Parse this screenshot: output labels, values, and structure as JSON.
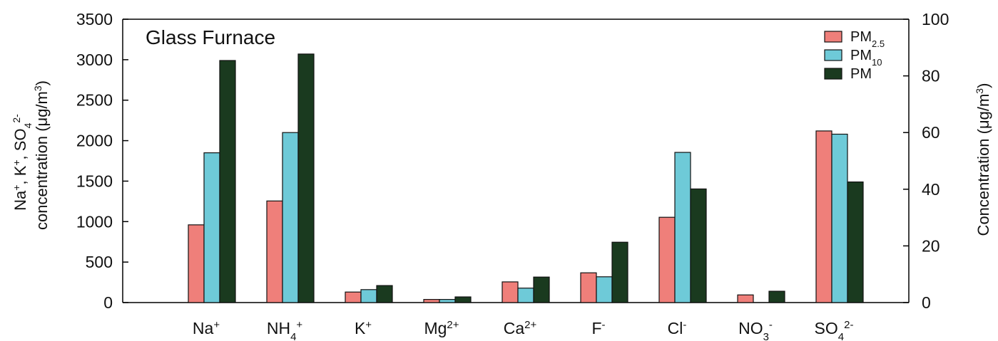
{
  "chart_data": {
    "type": "bar",
    "title": "Glass Furnace",
    "categories": [
      {
        "base": "Na",
        "sub": "",
        "sup": "+"
      },
      {
        "base": "NH",
        "sub": "4",
        "sup": "+"
      },
      {
        "base": "K",
        "sub": "",
        "sup": "+"
      },
      {
        "base": "Mg",
        "sub": "",
        "sup": "2+"
      },
      {
        "base": "Ca",
        "sub": "",
        "sup": "2+"
      },
      {
        "base": "F",
        "sub": "",
        "sup": "-"
      },
      {
        "base": "Cl",
        "sub": "",
        "sup": "-"
      },
      {
        "base": "NO",
        "sub": "3",
        "sup": "-"
      },
      {
        "base": "SO",
        "sub": "4",
        "sup": "2-"
      }
    ],
    "series": [
      {
        "name": "PM",
        "name_sub": "2.5",
        "color": "#ef7f7a",
        "values_left_axis": [
          960,
          1255,
          130,
          null,
          null,
          null,
          null,
          null,
          2120
        ],
        "values_right_axis": [
          null,
          null,
          null,
          1.1,
          7.3,
          10.5,
          30.1,
          2.7,
          null
        ]
      },
      {
        "name": "PM",
        "name_sub": "10",
        "color": "#6ecad8",
        "values_left_axis": [
          1850,
          2100,
          160,
          null,
          null,
          null,
          null,
          null,
          2080
        ],
        "values_right_axis": [
          null,
          null,
          null,
          1.1,
          5.1,
          9.1,
          53.0,
          0,
          null
        ]
      },
      {
        "name": "PM",
        "name_sub": "",
        "color": "#1a3a1f",
        "values_left_axis": [
          2990,
          3070,
          210,
          null,
          null,
          null,
          null,
          null,
          1490
        ],
        "values_right_axis": [
          null,
          null,
          null,
          2.0,
          9.0,
          21.3,
          40.1,
          4.0,
          null
        ]
      }
    ],
    "left_axis": {
      "label_lines": [
        [
          {
            "t": "Na"
          },
          {
            "t": "+",
            "sup": true
          },
          {
            "t": ", K"
          },
          {
            "t": "+",
            "sup": true
          },
          {
            "t": ", SO"
          },
          {
            "t": "4",
            "sub": true
          },
          {
            "t": "2-",
            "sup": true
          }
        ],
        [
          {
            "t": "concentration (μg/m"
          },
          {
            "t": "3",
            "sup": true
          },
          {
            "t": ")"
          }
        ]
      ],
      "ylim": [
        0,
        3500
      ],
      "ticks": [
        "0",
        "500",
        "1000",
        "1500",
        "2000",
        "2500",
        "3000",
        "3500"
      ]
    },
    "right_axis": {
      "label_parts": [
        {
          "t": "Concentration (μg/m"
        },
        {
          "t": "3",
          "sup": true
        },
        {
          "t": ")"
        }
      ],
      "ylim": [
        0,
        100
      ],
      "ticks": [
        "0",
        "20",
        "40",
        "60",
        "80",
        "100"
      ]
    },
    "legend_position": "top-right",
    "grid": false
  }
}
